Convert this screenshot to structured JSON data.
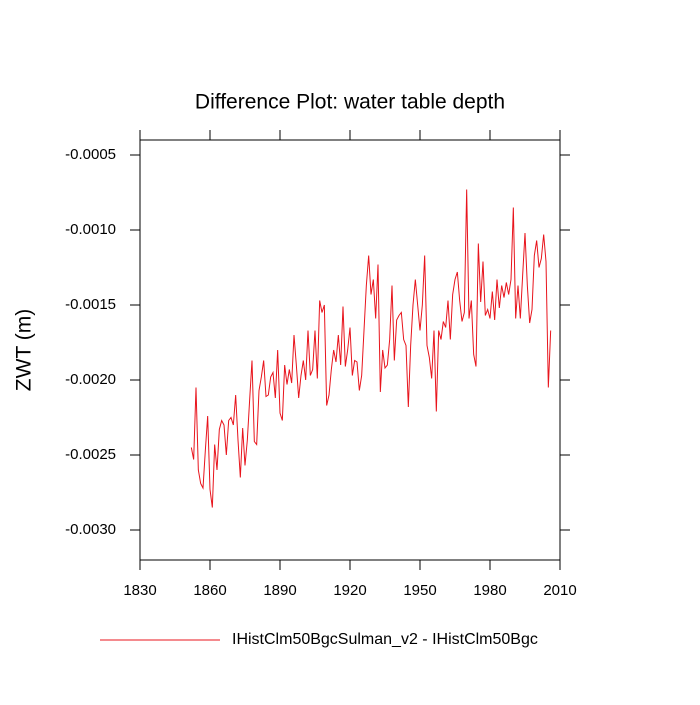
{
  "chart_data": {
    "type": "line",
    "title": "Difference Plot: water table depth",
    "y_label": "ZWT  (m)",
    "x": [
      1852,
      1853,
      1854,
      1855,
      1856,
      1857,
      1858,
      1859,
      1860,
      1861,
      1862,
      1863,
      1864,
      1865,
      1866,
      1867,
      1868,
      1869,
      1870,
      1871,
      1872,
      1873,
      1874,
      1875,
      1876,
      1877,
      1878,
      1879,
      1880,
      1881,
      1882,
      1883,
      1884,
      1885,
      1886,
      1887,
      1888,
      1889,
      1890,
      1891,
      1892,
      1893,
      1894,
      1895,
      1896,
      1897,
      1898,
      1899,
      1900,
      1901,
      1902,
      1903,
      1904,
      1905,
      1906,
      1907,
      1908,
      1909,
      1910,
      1911,
      1912,
      1913,
      1914,
      1915,
      1916,
      1917,
      1918,
      1919,
      1920,
      1921,
      1922,
      1923,
      1924,
      1925,
      1926,
      1927,
      1928,
      1929,
      1930,
      1931,
      1932,
      1933,
      1934,
      1935,
      1936,
      1937,
      1938,
      1939,
      1940,
      1941,
      1942,
      1943,
      1944,
      1945,
      1946,
      1947,
      1948,
      1949,
      1950,
      1951,
      1952,
      1953,
      1954,
      1955,
      1956,
      1957,
      1958,
      1959,
      1960,
      1961,
      1962,
      1963,
      1964,
      1965,
      1966,
      1967,
      1968,
      1969,
      1970,
      1971,
      1972,
      1973,
      1974,
      1975,
      1976,
      1977,
      1978,
      1979,
      1980,
      1981,
      1982,
      1983,
      1984,
      1985,
      1986,
      1987,
      1988,
      1989,
      1990,
      1991,
      1992,
      1993,
      1994,
      1995,
      1996,
      1997,
      1998,
      1999,
      2000,
      2001,
      2002,
      2003,
      2004,
      2005,
      2006
    ],
    "series": [
      {
        "name": "IHistClm50BgcSulman_v2 - IHistClm50Bgc",
        "color": "#e8141c",
        "values": [
          -0.00245,
          -0.00253,
          -0.00205,
          -0.0026,
          -0.00269,
          -0.00272,
          -0.00247,
          -0.00224,
          -0.00273,
          -0.00285,
          -0.00243,
          -0.0026,
          -0.00233,
          -0.00227,
          -0.0023,
          -0.0025,
          -0.00227,
          -0.00225,
          -0.0023,
          -0.0021,
          -0.0024,
          -0.00265,
          -0.00232,
          -0.00257,
          -0.0024,
          -0.00213,
          -0.00187,
          -0.00241,
          -0.00243,
          -0.00207,
          -0.00198,
          -0.00187,
          -0.00211,
          -0.0021,
          -0.00198,
          -0.00195,
          -0.00212,
          -0.0018,
          -0.00222,
          -0.00227,
          -0.0019,
          -0.00203,
          -0.00193,
          -0.00202,
          -0.0017,
          -0.0019,
          -0.00212,
          -0.00197,
          -0.00187,
          -0.002,
          -0.00167,
          -0.00197,
          -0.00193,
          -0.00167,
          -0.00199,
          -0.00147,
          -0.00155,
          -0.0015,
          -0.00217,
          -0.0021,
          -0.00193,
          -0.0018,
          -0.00188,
          -0.0017,
          -0.0019,
          -0.00151,
          -0.00191,
          -0.0018,
          -0.00165,
          -0.00197,
          -0.00187,
          -0.00188,
          -0.00207,
          -0.00197,
          -0.00167,
          -0.00137,
          -0.00117,
          -0.00143,
          -0.00133,
          -0.00159,
          -0.00123,
          -0.00208,
          -0.0018,
          -0.00192,
          -0.0019,
          -0.00173,
          -0.00137,
          -0.00187,
          -0.0016,
          -0.00157,
          -0.00155,
          -0.00173,
          -0.00177,
          -0.00218,
          -0.00177,
          -0.0015,
          -0.00133,
          -0.0015,
          -0.00167,
          -0.0015,
          -0.00117,
          -0.00177,
          -0.00185,
          -0.00199,
          -0.00167,
          -0.00221,
          -0.00167,
          -0.00173,
          -0.00161,
          -0.00165,
          -0.00147,
          -0.00173,
          -0.00143,
          -0.00133,
          -0.00128,
          -0.00147,
          -0.00161,
          -0.00155,
          -0.00073,
          -0.00159,
          -0.00147,
          -0.00183,
          -0.00191,
          -0.00109,
          -0.00148,
          -0.00121,
          -0.00157,
          -0.00153,
          -0.00159,
          -0.00141,
          -0.0016,
          -0.00133,
          -0.00152,
          -0.00137,
          -0.00145,
          -0.00135,
          -0.00143,
          -0.00133,
          -0.00085,
          -0.00159,
          -0.00137,
          -0.00159,
          -0.0013,
          -0.00102,
          -0.00137,
          -0.00162,
          -0.00153,
          -0.00117,
          -0.00107,
          -0.00125,
          -0.00119,
          -0.00103,
          -0.00121,
          -0.00205,
          -0.00167
        ]
      }
    ],
    "xlim": [
      1830,
      2010
    ],
    "xticks": [
      1830,
      1860,
      1890,
      1920,
      1950,
      1980,
      2010
    ],
    "ylim": [
      -0.0032,
      -0.0004
    ],
    "yticks": [
      {
        "value": -0.003,
        "label": "-0.0030"
      },
      {
        "value": -0.0025,
        "label": "-0.0025"
      },
      {
        "value": -0.002,
        "label": "-0.0020"
      },
      {
        "value": -0.0015,
        "label": "-0.0015"
      },
      {
        "value": -0.001,
        "label": "-0.0010"
      },
      {
        "value": -0.0005,
        "label": "-0.0005"
      }
    ],
    "legend": "bottom"
  }
}
